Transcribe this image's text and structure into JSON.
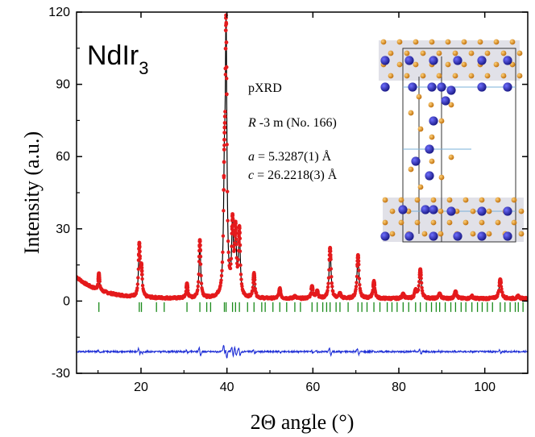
{
  "chart_data": {
    "type": "scatter",
    "title": "",
    "compound": {
      "base": "NdIr",
      "subscript": "3"
    },
    "xlabel": "2Θ angle (°)",
    "ylabel": "Intensity (a.u.)",
    "xlim": [
      5,
      110
    ],
    "ylim": [
      -30,
      120
    ],
    "xticks": [
      20,
      40,
      60,
      80,
      100
    ],
    "yticks": [
      -30,
      0,
      30,
      60,
      90,
      120
    ],
    "grid": false,
    "annotations": {
      "method": "pXRD",
      "space_group": {
        "italic": "R",
        "rest": " -3 m (No. 166)"
      },
      "lattice_a": {
        "italic": "a",
        "rest": " = 5.3287(1) Å"
      },
      "lattice_c": {
        "italic": "c",
        "rest": " = 26.2218(3) Å"
      }
    },
    "inset": "crystal-structure-image",
    "colors": {
      "observed": "#e41a1c",
      "calculated": "#000000",
      "difference": "#1f2fd6",
      "bragg": "#1a8a1a",
      "nd_atom": "#2b2bb5",
      "ir_atom": "#e8941a"
    },
    "background_level": 1.0,
    "difference_offset": -21,
    "bragg_row_y": -2.5,
    "peaks": [
      {
        "x": 10.2,
        "y": 8
      },
      {
        "x": 19.6,
        "y": 22
      },
      {
        "x": 20.1,
        "y": 12
      },
      {
        "x": 30.7,
        "y": 7
      },
      {
        "x": 33.7,
        "y": 25
      },
      {
        "x": 39.4,
        "y": 40
      },
      {
        "x": 39.8,
        "y": 108
      },
      {
        "x": 41.3,
        "y": 30
      },
      {
        "x": 42.0,
        "y": 27
      },
      {
        "x": 42.9,
        "y": 28
      },
      {
        "x": 46.3,
        "y": 11
      },
      {
        "x": 52.3,
        "y": 5
      },
      {
        "x": 55.8,
        "y": 2
      },
      {
        "x": 59.8,
        "y": 6
      },
      {
        "x": 61.0,
        "y": 4
      },
      {
        "x": 64.0,
        "y": 22
      },
      {
        "x": 66.3,
        "y": 3
      },
      {
        "x": 70.5,
        "y": 19
      },
      {
        "x": 74.2,
        "y": 8
      },
      {
        "x": 81.0,
        "y": 3
      },
      {
        "x": 83.9,
        "y": 4
      },
      {
        "x": 85.0,
        "y": 13
      },
      {
        "x": 89.5,
        "y": 3
      },
      {
        "x": 93.2,
        "y": 4
      },
      {
        "x": 97.0,
        "y": 2
      },
      {
        "x": 103.6,
        "y": 9
      },
      {
        "x": 107.8,
        "y": 2
      }
    ],
    "bragg_positions": [
      10.2,
      19.6,
      20.1,
      23.6,
      25.4,
      30.7,
      33.7,
      35.3,
      36.2,
      39.4,
      39.8,
      41.3,
      42.0,
      42.9,
      44.8,
      46.3,
      48.1,
      48.9,
      50.7,
      52.3,
      53.9,
      55.8,
      57.1,
      59.8,
      61.0,
      62.3,
      63.2,
      64.0,
      65.4,
      66.3,
      68.2,
      70.5,
      71.4,
      72.6,
      74.2,
      75.6,
      77.3,
      78.4,
      79.6,
      81.0,
      82.3,
      83.9,
      85.0,
      86.4,
      87.6,
      88.7,
      89.5,
      90.8,
      92.1,
      93.2,
      94.5,
      95.6,
      97.0,
      98.3,
      99.4,
      100.6,
      101.8,
      103.6,
      104.7,
      105.9,
      107.1,
      107.8,
      108.9
    ]
  }
}
